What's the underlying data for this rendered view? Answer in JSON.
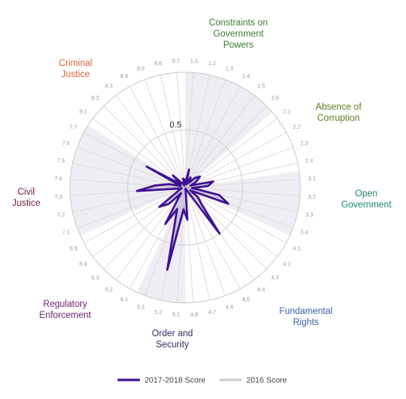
{
  "chart_data": {
    "type": "radar",
    "rmax": 1,
    "ring_label": "0.5",
    "subfactors": [
      "1.1",
      "1.2",
      "1.3",
      "1.4",
      "1.5",
      "1.6",
      "2.1",
      "2.2",
      "2.3",
      "2.4",
      "3.1",
      "3.2",
      "3.3",
      "3.4",
      "4.1",
      "4.2",
      "4.3",
      "4.4",
      "4.5",
      "4.6",
      "4.7",
      "4.8",
      "5.1",
      "5.2",
      "5.3",
      "6.1",
      "6.2",
      "6.3",
      "6.4",
      "6.5",
      "7.1",
      "7.2",
      "7.3",
      "7.4",
      "7.5",
      "7.6",
      "7.7",
      "8.1",
      "8.2",
      "8.3",
      "8.4",
      "8.5",
      "8.6",
      "8.7"
    ],
    "factors": [
      {
        "name": "Constraints on\nGovernment\nPowers",
        "color": "#3e7d32",
        "count": 6
      },
      {
        "name": "Absence of\nCorruption",
        "color": "#5d7d1e",
        "count": 4
      },
      {
        "name": "Open\nGovernment",
        "color": "#1e8a62",
        "count": 4
      },
      {
        "name": "Fundamental\nRights",
        "color": "#3c63a8",
        "count": 8
      },
      {
        "name": "Order and\nSecurity",
        "color": "#3d2a66",
        "count": 3
      },
      {
        "name": "Regulatory\nEnforcement",
        "color": "#6b2470",
        "count": 5
      },
      {
        "name": "Civil\nJustice",
        "color": "#7a1c2a",
        "count": 7
      },
      {
        "name": "Criminal\nJustice",
        "color": "#d2663e",
        "count": 7
      }
    ],
    "series": [
      {
        "name": "2017-2018 Score",
        "color": "#3f0f93",
        "values": [
          0.04,
          0.16,
          0.03,
          0.1,
          0.05,
          0.12,
          0.16,
          0.11,
          0.05,
          0.25,
          0.2,
          0.06,
          0.3,
          0.4,
          0.05,
          0.14,
          0.2,
          0.5,
          0.02,
          0.01,
          0.02,
          0.28,
          0.19,
          0.73,
          0.2,
          0.36,
          0.06,
          0.2,
          0.28,
          0.08,
          0.05,
          0.03,
          0.42,
          0.26,
          0.14,
          0.04,
          0.38,
          0.05,
          0.15,
          0.05,
          0.04,
          0.02,
          0.08,
          0.07
        ]
      },
      {
        "name": "2016 Score",
        "color": "#cccccc",
        "values": [
          0.03,
          0.13,
          0.02,
          0.08,
          0.04,
          0.1,
          0.13,
          0.1,
          0.04,
          0.21,
          0.17,
          0.05,
          0.25,
          0.34,
          0.04,
          0.12,
          0.16,
          0.42,
          0.02,
          0.01,
          0.02,
          0.23,
          0.16,
          0.6,
          0.17,
          0.3,
          0.05,
          0.17,
          0.24,
          0.07,
          0.04,
          0.03,
          0.35,
          0.22,
          0.12,
          0.04,
          0.32,
          0.04,
          0.13,
          0.04,
          0.03,
          0.02,
          0.07,
          0.06
        ]
      }
    ]
  }
}
